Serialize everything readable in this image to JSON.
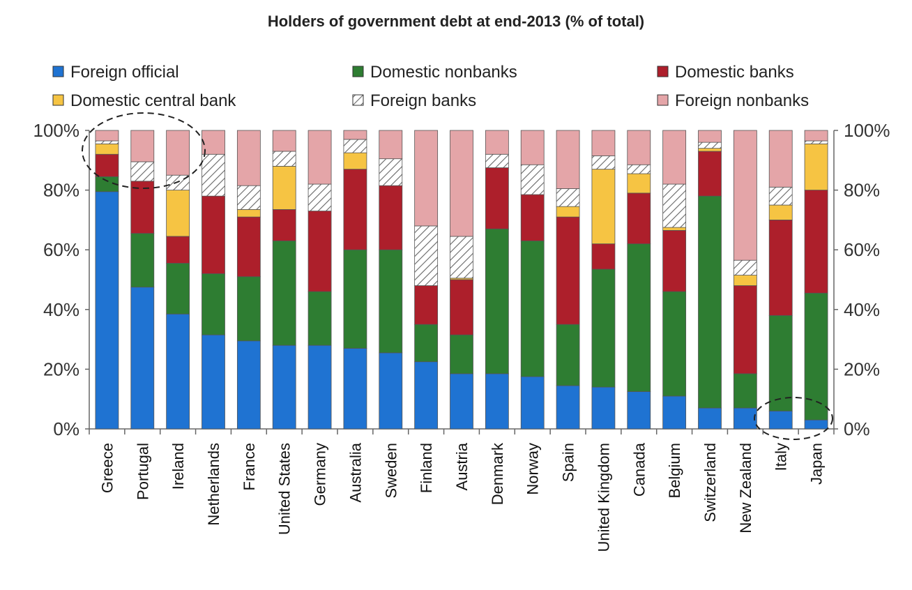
{
  "chart_data": {
    "type": "bar",
    "stacked": true,
    "title": "Holders of government debt at end-2013 (% of total)",
    "categories": [
      "Greece",
      "Portugal",
      "Ireland",
      "Netherlands",
      "France",
      "United States",
      "Germany",
      "Australia",
      "Sweden",
      "Finland",
      "Austria",
      "Denmark",
      "Norway",
      "Spain",
      "United Kingdom",
      "Canada",
      "Belgium",
      "Switzerland",
      "New Zealand",
      "Italy",
      "Japan"
    ],
    "series": [
      {
        "name": "Foreign official",
        "color": "#1f73d2",
        "values": [
          79.5,
          47.5,
          38.5,
          31.5,
          29.5,
          28,
          28,
          27,
          25.5,
          22.5,
          18.5,
          18.5,
          17.5,
          14.5,
          14,
          12.5,
          11,
          7,
          7,
          6,
          3
        ]
      },
      {
        "name": "Domestic nonbanks",
        "color": "#2e7d32",
        "values": [
          5,
          18,
          17,
          20.5,
          21.5,
          35,
          18,
          33,
          34.5,
          12.5,
          13,
          48.5,
          45.5,
          20.5,
          39.5,
          49.5,
          35,
          71,
          11.5,
          32,
          42.5
        ]
      },
      {
        "name": "Domestic banks",
        "color": "#ad1f2b",
        "values": [
          7.5,
          17.5,
          9,
          26,
          20,
          10.5,
          27,
          27,
          21.5,
          13,
          18.5,
          20.5,
          15.5,
          36,
          8.5,
          17,
          20.5,
          15,
          29.5,
          32,
          34.5
        ]
      },
      {
        "name": "Domestic central bank",
        "color": "#f6c443",
        "values": [
          3.5,
          0,
          15.5,
          0,
          2.5,
          14.5,
          0,
          5.5,
          0,
          0,
          0.5,
          0,
          0,
          3.5,
          25,
          6.5,
          1,
          1,
          3.5,
          5,
          15.5
        ]
      },
      {
        "name": "Foreign banks",
        "color": "hatch",
        "values": [
          1,
          6.5,
          5,
          14,
          8,
          5,
          9,
          4.5,
          9,
          20,
          14,
          4.5,
          10,
          6,
          4.5,
          3,
          14.5,
          2,
          5,
          6,
          1
        ]
      },
      {
        "name": "Foreign nonbanks",
        "color": "#e4a5a8",
        "values": [
          3.5,
          10.5,
          15,
          8,
          18.5,
          7,
          18,
          3,
          9.5,
          32,
          35.5,
          8,
          11.5,
          19.5,
          8.5,
          11.5,
          18,
          4,
          43.5,
          19,
          3.5
        ]
      }
    ],
    "ylim": [
      0,
      100
    ],
    "yticks": [
      "0%",
      "20%",
      "40%",
      "60%",
      "80%",
      "100%"
    ],
    "ylabel": "",
    "xlabel": "",
    "legend_position": "top",
    "annotations": [
      "dashed ellipse around top of Greece and Portugal/Ireland columns",
      "dashed ellipse around bottom of Italy and Japan columns"
    ]
  }
}
